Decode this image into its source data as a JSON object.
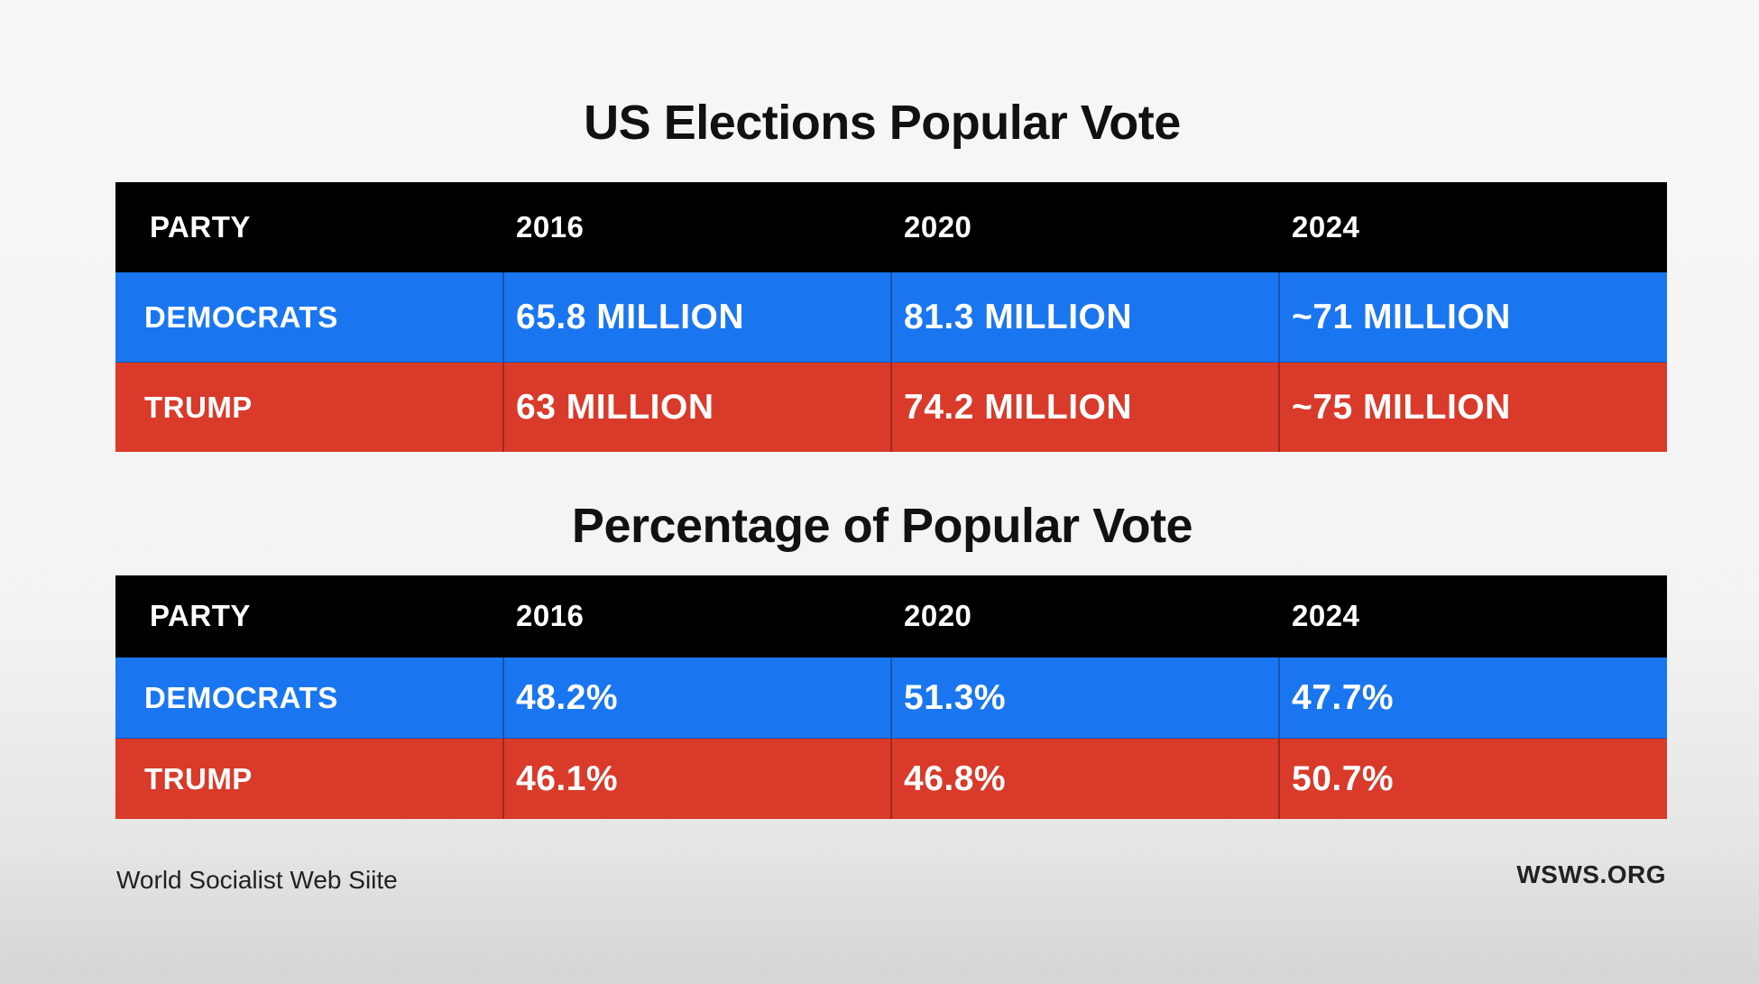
{
  "chart_data": [
    {
      "type": "table",
      "title": "US Elections Popular Vote",
      "columns": [
        "PARTY",
        "2016",
        "2020",
        "2024"
      ],
      "rows": [
        {
          "party": "DEMOCRATS",
          "values": [
            "65.8 MILLION",
            "81.3 MILLION",
            "~71 MILLION"
          ],
          "color": "#1a76f0"
        },
        {
          "party": "TRUMP",
          "values": [
            "63 MILLION",
            "74.2 MILLION",
            "~75 MILLION"
          ],
          "color": "#d93a2a"
        }
      ]
    },
    {
      "type": "table",
      "title": "Percentage of Popular Vote",
      "columns": [
        "PARTY",
        "2016",
        "2020",
        "2024"
      ],
      "rows": [
        {
          "party": "DEMOCRATS",
          "values": [
            "48.2%",
            "51.3%",
            "47.7%"
          ],
          "color": "#1a76f0"
        },
        {
          "party": "TRUMP",
          "values": [
            "46.1%",
            "46.8%",
            "50.7%"
          ],
          "color": "#d93a2a"
        }
      ]
    }
  ],
  "footer": {
    "source": "World Socialist Web Siite",
    "site": "WSWS.ORG"
  },
  "colors": {
    "header_bg": "#000000",
    "democrats": "#1a76f0",
    "trump": "#d93a2a",
    "text": "#ffffff"
  }
}
